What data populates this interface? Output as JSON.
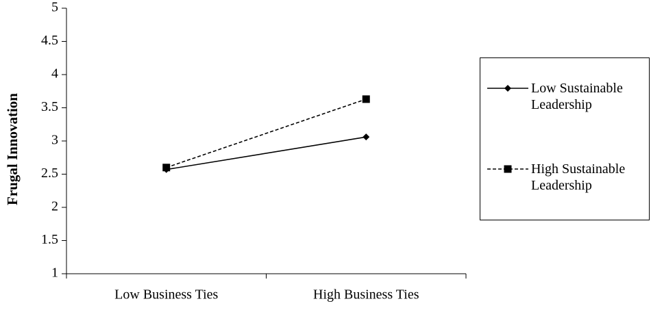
{
  "chart_data": {
    "type": "line",
    "y_label": "Frugal Innovation",
    "categories": [
      "Low Business Ties",
      "High Business Ties"
    ],
    "series": [
      {
        "name": "Low Sustainable Leadership",
        "color": "#000000",
        "line_style": "solid",
        "marker": "diamond",
        "values": [
          2.57,
          3.06
        ]
      },
      {
        "name": "High Sustainable Leadership",
        "color": "#000000",
        "line_style": "dashed",
        "marker": "square",
        "values": [
          2.6,
          3.63
        ]
      }
    ],
    "ylim": [
      1,
      5
    ],
    "yticks": [
      1,
      1.5,
      2,
      2.5,
      3,
      3.5,
      4,
      4.5,
      5
    ],
    "grid": false
  }
}
